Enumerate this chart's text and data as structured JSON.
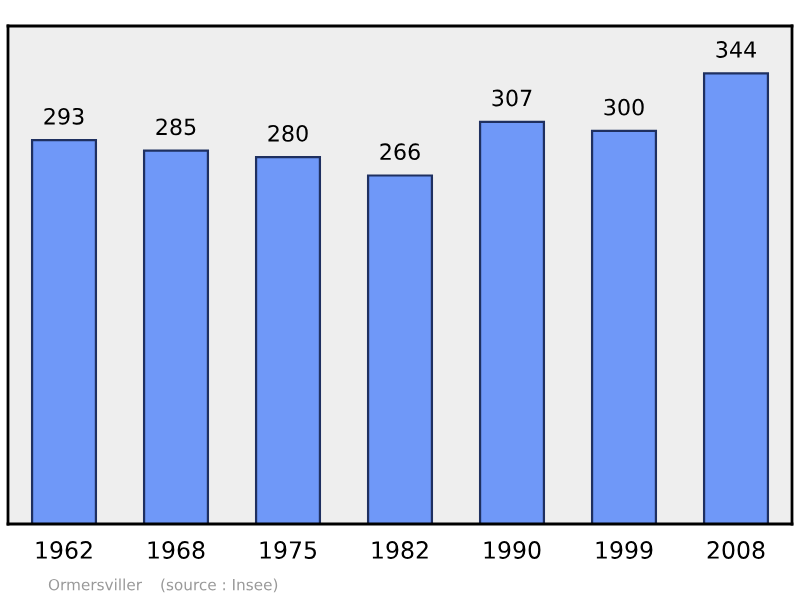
{
  "chart_data": {
    "type": "bar",
    "categories": [
      "1962",
      "1968",
      "1975",
      "1982",
      "1990",
      "1999",
      "2008"
    ],
    "values": [
      293,
      285,
      280,
      266,
      307,
      300,
      344
    ],
    "color": "#6f98f8",
    "data_labels": true,
    "grid": false,
    "legend": false,
    "annotations": [
      "Ormersviller",
      "(source : Insee)"
    ]
  }
}
